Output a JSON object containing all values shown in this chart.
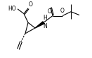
{
  "background_color": "#ffffff",
  "figsize": [
    1.31,
    0.83
  ],
  "dpi": 100,
  "xlim": [
    0,
    1.31
  ],
  "ylim": [
    0,
    0.83
  ]
}
